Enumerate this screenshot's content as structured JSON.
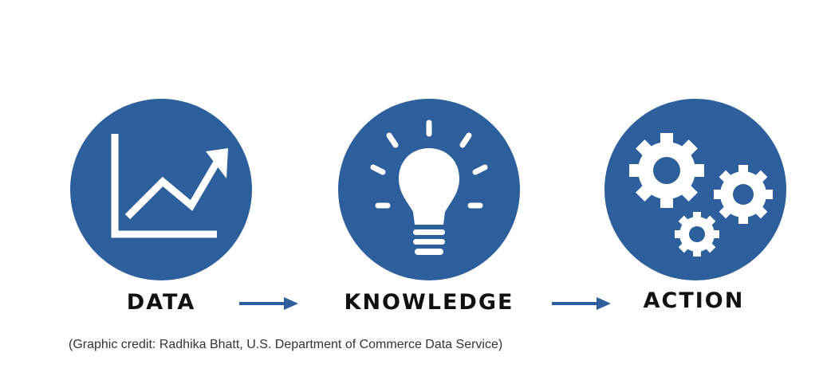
{
  "colors": {
    "circle": "#2c5f9b",
    "icon": "#ffffff",
    "arrow": "#2c5f9b",
    "label": "#111111",
    "credit": "#333333"
  },
  "steps": [
    {
      "label": "DATA",
      "icon": "line-chart-icon"
    },
    {
      "label": "KNOWLEDGE",
      "icon": "lightbulb-icon"
    },
    {
      "label": "ACTION",
      "icon": "gears-icon"
    }
  ],
  "credit": "(Graphic credit: Radhika Bhatt, U.S. Department of Commerce Data Service)"
}
